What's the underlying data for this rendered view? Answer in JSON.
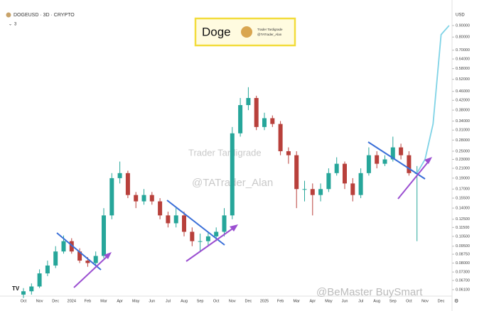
{
  "header": {
    "symbol": "DOGEUSD · 3D · CRYPTO",
    "indicator": "3",
    "currency": "USD"
  },
  "logo_box": {
    "title": "Doge",
    "author": "Trader Tardigrade",
    "handle": "@TATrader_Alan"
  },
  "watermarks": [
    "Trader Tardigrade",
    "@TATrader_Alan",
    "@BeMaster BuySmart"
  ],
  "chart_data": {
    "type": "candlestick",
    "categories": [
      "Oct",
      null,
      "Nov",
      null,
      "Dec",
      null,
      "2024",
      null,
      "Feb",
      null,
      "Mar",
      null,
      "Apr",
      null,
      "May",
      null,
      "Jun",
      null,
      "Jul",
      null,
      "Aug",
      null,
      "Sep",
      null,
      "Oct",
      null,
      "Nov",
      null,
      "Dec",
      null,
      "2025",
      null,
      "Feb",
      null,
      "Mar",
      null,
      "Apr",
      null,
      "May",
      null,
      "Jun",
      null,
      "Jul",
      null,
      "Aug",
      null,
      "Sep",
      null,
      "Oct",
      null,
      "Nov",
      null,
      "Dec",
      null
    ],
    "open": [
      0.058,
      0.06,
      0.063,
      0.072,
      0.078,
      0.09,
      0.1,
      0.09,
      0.082,
      0.08,
      0.086,
      0.13,
      0.19,
      0.2,
      0.16,
      0.15,
      0.16,
      0.15,
      0.13,
      0.12,
      0.13,
      0.11,
      0.1,
      0.1,
      0.105,
      0.11,
      0.13,
      0.3,
      0.4,
      0.43,
      0.32,
      0.35,
      0.33,
      0.25,
      0.24,
      0.17,
      0.17,
      0.16,
      0.17,
      0.2,
      0.22,
      0.18,
      0.16,
      0.2,
      0.24,
      0.22,
      0.23,
      0.26,
      0.24,
      0.2,
      null,
      null,
      null,
      null
    ],
    "high": [
      0.062,
      0.065,
      0.075,
      0.082,
      0.095,
      0.106,
      0.103,
      0.093,
      0.085,
      0.09,
      0.14,
      0.2,
      0.225,
      0.205,
      0.165,
      0.17,
      0.165,
      0.155,
      0.135,
      0.14,
      0.135,
      0.115,
      0.108,
      0.11,
      0.115,
      0.14,
      0.32,
      0.43,
      0.48,
      0.44,
      0.37,
      0.36,
      0.34,
      0.26,
      0.25,
      0.185,
      0.18,
      0.18,
      0.21,
      0.235,
      0.225,
      0.19,
      0.21,
      0.26,
      0.25,
      0.24,
      0.29,
      0.27,
      0.25,
      0.215,
      null,
      null,
      null,
      null
    ],
    "low": [
      0.056,
      0.058,
      0.062,
      0.07,
      0.076,
      0.088,
      0.088,
      0.08,
      0.077,
      0.078,
      0.084,
      0.125,
      0.18,
      0.155,
      0.14,
      0.145,
      0.145,
      0.125,
      0.115,
      0.115,
      0.105,
      0.095,
      0.09,
      0.095,
      0.1,
      0.105,
      0.125,
      0.29,
      0.38,
      0.31,
      0.31,
      0.32,
      0.24,
      0.22,
      0.14,
      0.15,
      0.13,
      0.15,
      0.165,
      0.195,
      0.17,
      0.15,
      0.155,
      0.195,
      0.21,
      0.215,
      0.225,
      0.23,
      0.195,
      0.1,
      null,
      null,
      null,
      null
    ],
    "close": [
      0.06,
      0.063,
      0.072,
      0.078,
      0.09,
      0.1,
      0.09,
      0.082,
      0.08,
      0.086,
      0.13,
      0.19,
      0.2,
      0.16,
      0.15,
      0.16,
      0.15,
      0.13,
      0.12,
      0.13,
      0.11,
      0.1,
      0.1,
      0.105,
      0.11,
      0.13,
      0.3,
      0.4,
      0.43,
      0.32,
      0.35,
      0.33,
      0.25,
      0.24,
      0.17,
      0.17,
      0.16,
      0.17,
      0.2,
      0.22,
      0.18,
      0.16,
      0.2,
      0.24,
      0.22,
      0.23,
      0.26,
      0.24,
      0.2,
      0.2,
      null,
      null,
      null,
      null
    ],
    "projection": {
      "color": "#7fd3e6",
      "values": [
        null,
        null,
        null,
        null,
        null,
        null,
        null,
        null,
        null,
        null,
        null,
        null,
        null,
        null,
        null,
        null,
        null,
        null,
        null,
        null,
        null,
        null,
        null,
        null,
        null,
        null,
        null,
        null,
        null,
        null,
        null,
        null,
        null,
        null,
        null,
        null,
        null,
        null,
        null,
        null,
        null,
        null,
        null,
        null,
        null,
        null,
        null,
        null,
        null,
        0.2,
        0.23,
        0.33,
        0.82,
        0.9
      ]
    },
    "up_color": "#26a69a",
    "down_color": "#b8403b",
    "log_scale": true,
    "ylim": [
      0.052,
      1.01
    ],
    "yticks": [
      {
        "value": 0.9,
        "label": "0.90000"
      },
      {
        "value": 0.8,
        "label": "0.80000"
      },
      {
        "value": 0.7,
        "label": "0.70000"
      },
      {
        "value": 0.64,
        "label": "0.64000"
      },
      {
        "value": 0.58,
        "label": "0.58000"
      },
      {
        "value": 0.52,
        "label": "0.52000"
      },
      {
        "value": 0.46,
        "label": "0.46000"
      },
      {
        "value": 0.42,
        "label": "0.42000"
      },
      {
        "value": 0.38,
        "label": "0.38000"
      },
      {
        "value": 0.34,
        "label": "0.34000"
      },
      {
        "value": 0.31,
        "label": "0.31000"
      },
      {
        "value": 0.28,
        "label": "0.28000"
      },
      {
        "value": 0.25,
        "label": "0.25000"
      },
      {
        "value": 0.23,
        "label": "0.23000"
      },
      {
        "value": 0.21,
        "label": "0.21000"
      },
      {
        "value": 0.19,
        "label": "0.19000"
      },
      {
        "value": 0.17,
        "label": "0.17000"
      },
      {
        "value": 0.155,
        "label": "0.15500"
      },
      {
        "value": 0.14,
        "label": "0.14000"
      },
      {
        "value": 0.125,
        "label": "0.12500"
      },
      {
        "value": 0.115,
        "label": "0.11500"
      },
      {
        "value": 0.105,
        "label": "0.10500"
      },
      {
        "value": 0.095,
        "label": "0.09500"
      },
      {
        "value": 0.0875,
        "label": "0.08750"
      },
      {
        "value": 0.08,
        "label": "0.08000"
      },
      {
        "value": 0.073,
        "label": "0.07300"
      },
      {
        "value": 0.067,
        "label": "0.06700"
      },
      {
        "value": 0.061,
        "label": "0.06100"
      }
    ]
  }
}
